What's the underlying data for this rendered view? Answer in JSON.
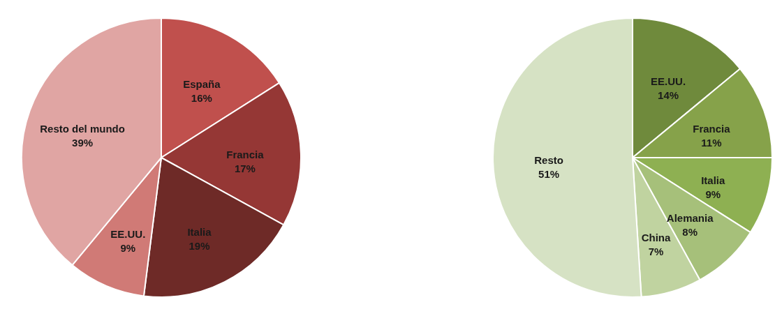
{
  "chart_data": [
    {
      "type": "pie",
      "categories": [
        "España",
        "Francia",
        "Italia",
        "EE.UU.",
        "Resto del mundo"
      ],
      "values": [
        16,
        17,
        19,
        9,
        39
      ],
      "value_labels": [
        "16%",
        "17%",
        "19%",
        "9%",
        "39%"
      ],
      "colors": [
        "#c0504d",
        "#953735",
        "#6e2a27",
        "#d07a76",
        "#e0a5a3"
      ],
      "legend": false
    },
    {
      "type": "pie",
      "categories": [
        "EE.UU.",
        "Francia",
        "Italia",
        "Alemania",
        "China",
        "Resto"
      ],
      "values": [
        14,
        11,
        9,
        8,
        7,
        51
      ],
      "value_labels": [
        "14%",
        "11%",
        "9%",
        "8%",
        "7%",
        "51%"
      ],
      "colors": [
        "#6f8a3c",
        "#86a24a",
        "#8eb052",
        "#a6c07a",
        "#c0d3a0",
        "#d6e2c4"
      ],
      "legend": false
    }
  ]
}
